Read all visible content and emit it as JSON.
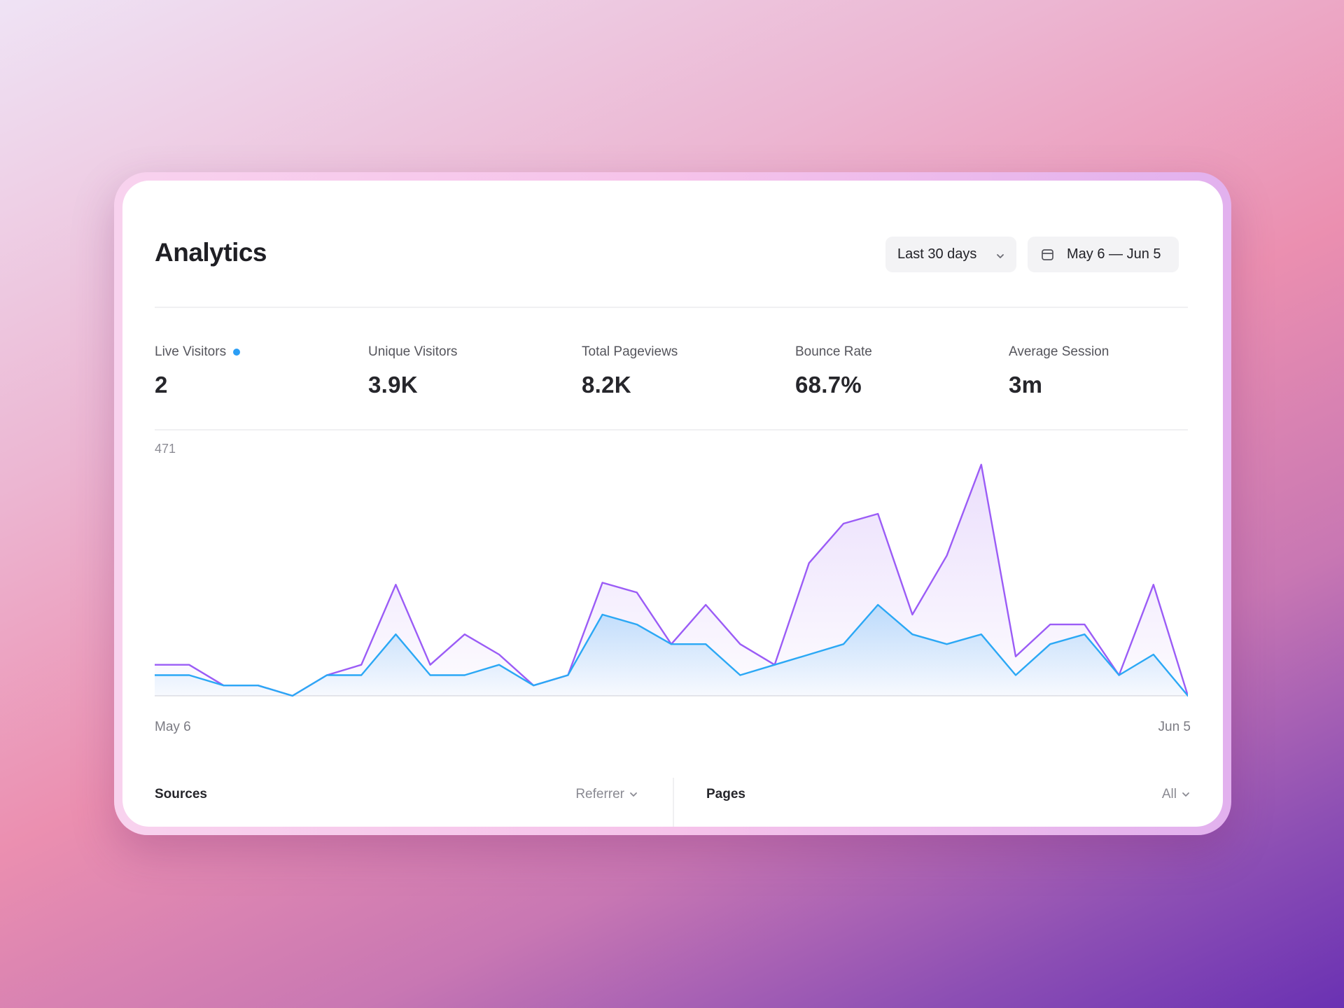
{
  "header": {
    "title": "Analytics",
    "range_label": "Last 30 days",
    "date_label": "May 6 — Jun 5"
  },
  "stats": [
    {
      "label": "Live Visitors",
      "value": "2"
    },
    {
      "label": "Unique Visitors",
      "value": "3.9K"
    },
    {
      "label": "Total Pageviews",
      "value": "8.2K"
    },
    {
      "label": "Bounce Rate",
      "value": "68.7%"
    },
    {
      "label": "Average Session",
      "value": "3m"
    }
  ],
  "colors": {
    "pageviews": "#9b5cf6",
    "visitors": "#2ba8f5",
    "live_dot": "#2b9ef5"
  },
  "icons": {
    "range_chevron": "chevron-down-icon",
    "date": "calendar-icon",
    "filter_chevron": "chevron-down-icon"
  },
  "chart_data": {
    "type": "area",
    "y_max_label": "471",
    "x_start_label": "May 6",
    "x_end_label": "Jun 5",
    "ylim": [
      0,
      471
    ],
    "x": [
      "May 6",
      "May 7",
      "May 8",
      "May 9",
      "May 10",
      "May 11",
      "May 12",
      "May 13",
      "May 14",
      "May 15",
      "May 16",
      "May 17",
      "May 18",
      "May 19",
      "May 20",
      "May 21",
      "May 22",
      "May 23",
      "May 24",
      "May 25",
      "May 26",
      "May 27",
      "May 28",
      "May 29",
      "May 30",
      "May 31",
      "Jun 1",
      "Jun 2",
      "Jun 3",
      "Jun 4",
      "Jun 5"
    ],
    "series": [
      {
        "values": [
          63,
          63,
          21,
          21,
          0,
          42,
          63,
          226,
          63,
          125,
          84,
          21,
          42,
          230,
          210,
          105,
          185,
          105,
          63,
          270,
          350,
          370,
          165,
          285,
          470,
          80,
          145,
          145,
          42,
          226,
          0
        ]
      },
      {
        "values": [
          42,
          42,
          21,
          21,
          0,
          42,
          42,
          125,
          42,
          42,
          63,
          21,
          42,
          165,
          145,
          105,
          105,
          42,
          63,
          84,
          105,
          185,
          125,
          105,
          125,
          42,
          105,
          125,
          42,
          84,
          0
        ]
      }
    ]
  },
  "panels": {
    "sources": {
      "title": "Sources",
      "filter": "Referrer"
    },
    "pages": {
      "title": "Pages",
      "filter": "All"
    }
  }
}
